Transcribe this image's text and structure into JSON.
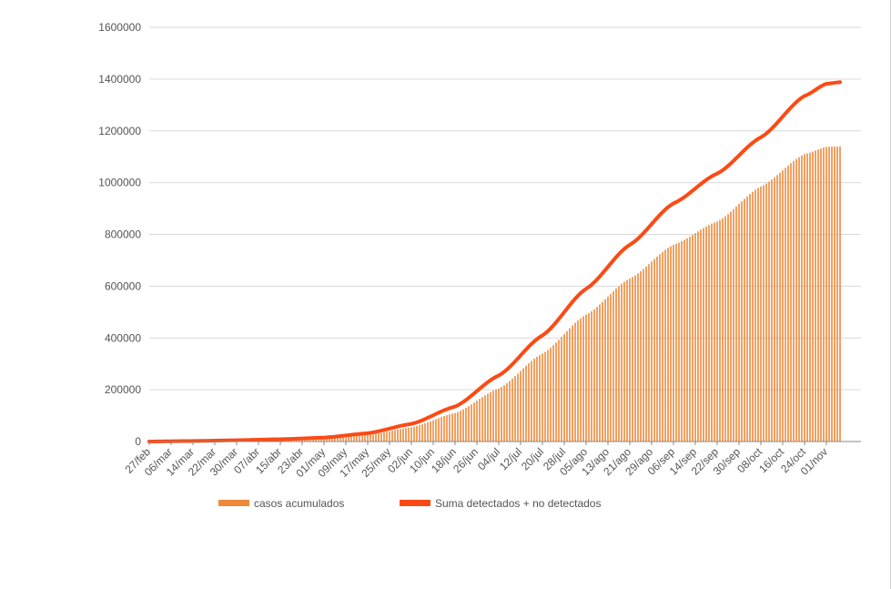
{
  "chart_data": {
    "type": "bar",
    "title": "",
    "xlabel": "",
    "ylabel": "",
    "ylim": [
      0,
      1600000
    ],
    "y_ticks": [
      "0",
      "200000",
      "400000",
      "600000",
      "800000",
      "1000000",
      "1200000",
      "1400000",
      "1600000"
    ],
    "x_ticks": [
      "27/feb",
      "06/mar",
      "14/mar",
      "22/mar",
      "30/mar",
      "07/abr",
      "15/abr",
      "23/abr",
      "01/may",
      "09/may",
      "17/may",
      "25/may",
      "02/jun",
      "10/jun",
      "18/jun",
      "26/jun",
      "04/jul",
      "12/jul",
      "20/jul",
      "28/jul",
      "05/ago",
      "13/ago",
      "21/ago",
      "29/ago",
      "06/sep",
      "14/sep",
      "22/sep",
      "30/sep",
      "08/oct",
      "16/oct",
      "24/oct",
      "01/nov"
    ],
    "grid": true,
    "legend_position": "bottom",
    "series": [
      {
        "name": "casos acumulados",
        "type": "bar",
        "color": "#f0883a",
        "points": [
          [
            "27/feb",
            0
          ],
          [
            "14/mar",
            2000
          ],
          [
            "30/mar",
            6000
          ],
          [
            "15/abr",
            9000
          ],
          [
            "01/may",
            13000
          ],
          [
            "17/may",
            25000
          ],
          [
            "02/jun",
            55000
          ],
          [
            "18/jun",
            110000
          ],
          [
            "04/jul",
            205000
          ],
          [
            "20/jul",
            340000
          ],
          [
            "05/ago",
            490000
          ],
          [
            "21/ago",
            630000
          ],
          [
            "06/sep",
            760000
          ],
          [
            "22/sep",
            850000
          ],
          [
            "08/oct",
            985000
          ],
          [
            "24/oct",
            1110000
          ],
          [
            "01/nov",
            1138000
          ],
          [
            "06/nov",
            1140000
          ]
        ]
      },
      {
        "name": "Suma detectados + no detectados",
        "type": "line",
        "color": "#fc4a14",
        "points": [
          [
            "27/feb",
            0
          ],
          [
            "14/mar",
            2000
          ],
          [
            "30/mar",
            5000
          ],
          [
            "15/abr",
            9000
          ],
          [
            "01/may",
            15000
          ],
          [
            "17/may",
            32000
          ],
          [
            "02/jun",
            68000
          ],
          [
            "18/jun",
            135000
          ],
          [
            "04/jul",
            255000
          ],
          [
            "20/jul",
            410000
          ],
          [
            "05/ago",
            590000
          ],
          [
            "21/ago",
            760000
          ],
          [
            "06/sep",
            920000
          ],
          [
            "22/sep",
            1035000
          ],
          [
            "08/oct",
            1175000
          ],
          [
            "24/oct",
            1335000
          ],
          [
            "01/nov",
            1382000
          ],
          [
            "06/nov",
            1388000
          ]
        ]
      }
    ]
  }
}
